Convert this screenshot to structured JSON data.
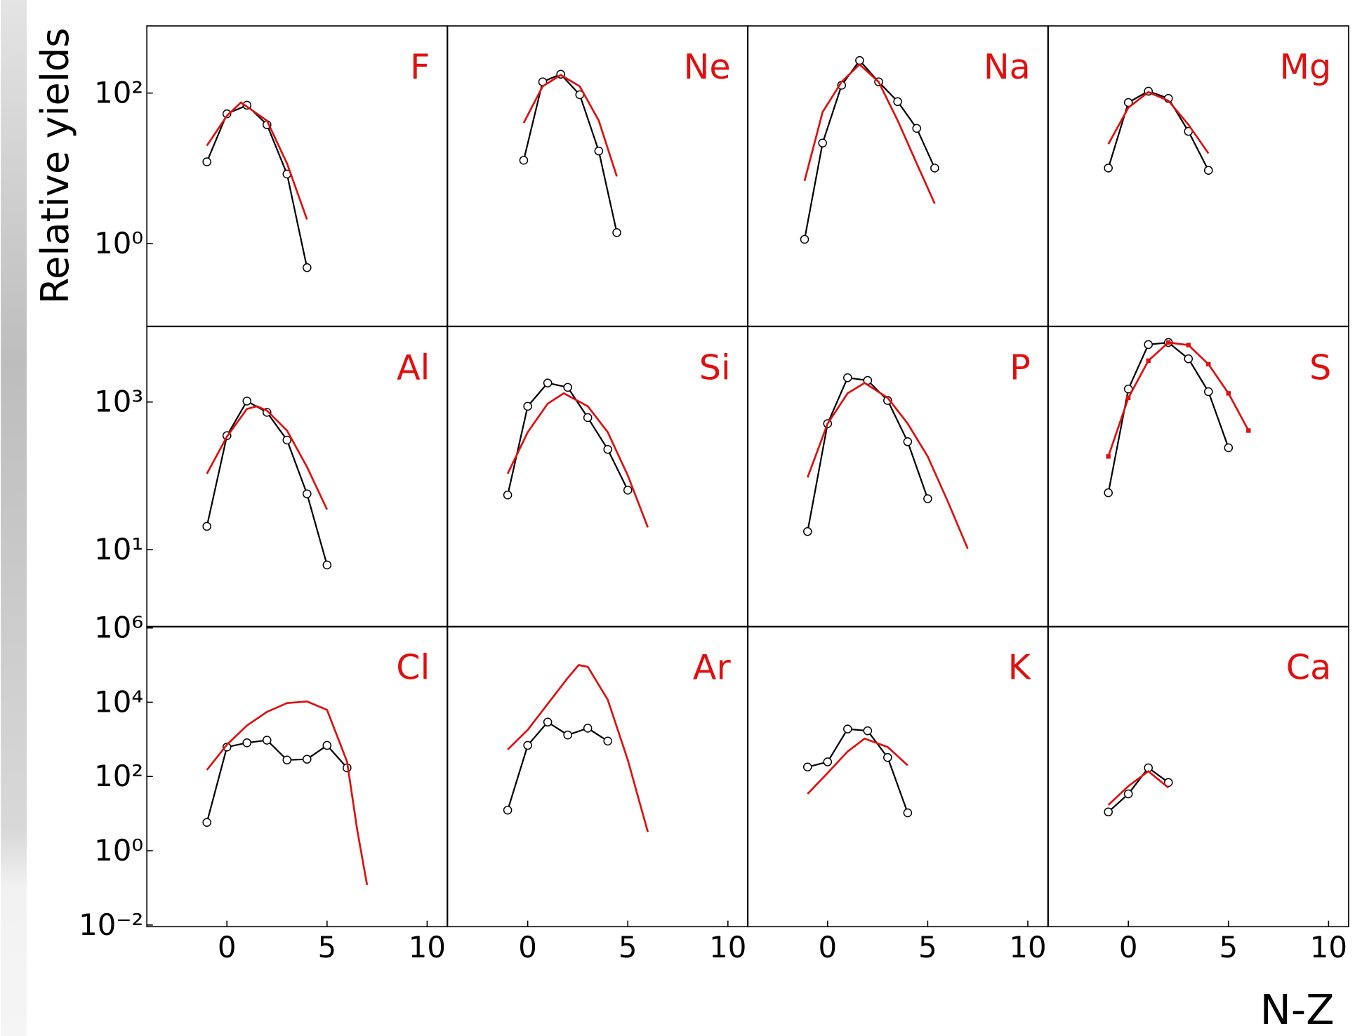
{
  "chart_data": [
    {
      "type": "line",
      "title": "F",
      "ylabel": "Relative yields",
      "log_y": true,
      "xlim": [
        -4,
        11
      ],
      "ylim": [
        0.08,
        780
      ],
      "yticks": [
        {
          "value": 1,
          "label": "10⁰"
        },
        {
          "value": 100,
          "label": "10²"
        }
      ],
      "series": [
        {
          "color": "#000000",
          "marker": "circle",
          "x": [
            -1,
            0,
            1,
            2,
            3,
            4
          ],
          "values": [
            12.2,
            53,
            69,
            38,
            8.4,
            0.48
          ]
        },
        {
          "color": "#dd1111",
          "marker": null,
          "x": [
            -1,
            0,
            0.7,
            2,
            3,
            4
          ],
          "values": [
            20,
            50,
            75,
            43,
            11.6,
            2.1
          ]
        }
      ]
    },
    {
      "type": "line",
      "title": "Ne",
      "log_y": true,
      "xlim": [
        -4,
        11
      ],
      "ylim": [
        0.08,
        780
      ],
      "series": [
        {
          "color": "#000000",
          "marker": "circle",
          "x": [
            -0.2,
            0.75,
            1.65,
            2.6,
            3.55,
            4.45
          ],
          "values": [
            12.8,
            141,
            178,
            95,
            17,
            1.4
          ]
        },
        {
          "color": "#dd1111",
          "marker": null,
          "x": [
            -0.2,
            0.75,
            1.65,
            2.6,
            3.55,
            4.45
          ],
          "values": [
            40,
            123,
            174,
            123,
            43,
            7.8
          ]
        }
      ]
    },
    {
      "type": "line",
      "title": "Na",
      "log_y": true,
      "xlim": [
        -4,
        11
      ],
      "ylim": [
        0.08,
        780
      ],
      "series": [
        {
          "color": "#000000",
          "marker": "circle",
          "x": [
            -1.15,
            -0.25,
            0.7,
            1.6,
            2.55,
            3.5,
            4.45,
            5.35
          ],
          "values": [
            1.14,
            21.7,
            127,
            271,
            141,
            77,
            34,
            10.1
          ]
        },
        {
          "color": "#dd1111",
          "marker": null,
          "x": [
            -1.15,
            -0.25,
            0.7,
            1.6,
            2.55,
            3.5,
            4.45,
            5.35
          ],
          "values": [
            6.8,
            56,
            141,
            240,
            141,
            43,
            11.6,
            3.4
          ]
        }
      ]
    },
    {
      "type": "line",
      "title": "Mg",
      "log_y": true,
      "xlim": [
        -4,
        11
      ],
      "ylim": [
        0.08,
        780
      ],
      "series": [
        {
          "color": "#000000",
          "marker": "circle",
          "x": [
            -1,
            0,
            1,
            2,
            3,
            4
          ],
          "values": [
            10.1,
            75,
            106,
            85,
            31,
            9.4
          ]
        },
        {
          "color": "#dd1111",
          "marker": null,
          "x": [
            -1,
            0,
            1,
            2,
            3,
            4
          ],
          "values": [
            21,
            64,
            103,
            79,
            38,
            15.8
          ]
        }
      ]
    },
    {
      "type": "line",
      "title": "Al",
      "log_y": true,
      "xlim": [
        -4,
        11
      ],
      "ylim": [
        0.9,
        10500
      ],
      "yticks": [
        {
          "value": 10,
          "label": "10¹"
        },
        {
          "value": 1000,
          "label": "10³"
        }
      ],
      "series": [
        {
          "color": "#000000",
          "marker": "circle",
          "x": [
            -1,
            0,
            1,
            2,
            3,
            4,
            5
          ],
          "values": [
            20.7,
            350,
            1030,
            725,
            305,
            57,
            6.2
          ]
        },
        {
          "color": "#dd1111",
          "marker": null,
          "x": [
            -1,
            0,
            1,
            1.5,
            2,
            3,
            4,
            5
          ],
          "values": [
            107,
            340,
            806,
            875,
            764,
            410,
            132,
            35
          ]
        }
      ]
    },
    {
      "type": "line",
      "title": "Si",
      "log_y": true,
      "xlim": [
        -4,
        11
      ],
      "ylim": [
        0.9,
        10500
      ],
      "series": [
        {
          "color": "#000000",
          "marker": "circle",
          "x": [
            -1,
            0,
            1,
            2,
            3,
            4,
            5
          ],
          "values": [
            55,
            875,
            1810,
            1580,
            615,
            228,
            64
          ]
        },
        {
          "color": "#dd1111",
          "marker": null,
          "x": [
            -1,
            0,
            1,
            1.8,
            3,
            4,
            5,
            6
          ],
          "values": [
            107,
            390,
            950,
            1310,
            875,
            390,
            101,
            20
          ]
        }
      ]
    },
    {
      "type": "line",
      "title": "P",
      "log_y": true,
      "xlim": [
        -4,
        11
      ],
      "ylim": [
        0.9,
        10500
      ],
      "series": [
        {
          "color": "#000000",
          "marker": "circle",
          "x": [
            -1,
            0,
            1,
            2,
            3,
            4,
            5
          ],
          "values": [
            17.6,
            510,
            2130,
            1960,
            1050,
            290,
            49
          ]
        },
        {
          "color": "#dd1111",
          "marker": null,
          "x": [
            -1,
            0,
            1,
            1.85,
            3,
            4,
            5,
            6,
            7
          ],
          "values": [
            95,
            510,
            1310,
            1810,
            1140,
            510,
            183,
            45,
            10.3
          ]
        }
      ]
    },
    {
      "type": "line",
      "title": "S",
      "log_y": true,
      "xlim": [
        -4,
        11
      ],
      "ylim": [
        0.9,
        10500
      ],
      "series": [
        {
          "color": "#000000",
          "marker": "circle",
          "x": [
            -1,
            0,
            1,
            2,
            3,
            4,
            5
          ],
          "values": [
            59,
            1500,
            6000,
            6400,
            3850,
            1380,
            240
          ]
        },
        {
          "color": "#dd1111",
          "marker": "square",
          "x": [
            -1,
            0,
            1,
            2,
            3,
            4,
            5,
            6
          ],
          "values": [
            183,
            1140,
            3630,
            6400,
            5900,
            3250,
            1310,
            410
          ]
        }
      ]
    },
    {
      "type": "line",
      "title": "Cl",
      "log_y": true,
      "xlim": [
        -4,
        11
      ],
      "ylim": [
        0.009,
        1100000
      ],
      "xticks": [
        0,
        5,
        10
      ],
      "yticks": [
        {
          "value": 0.01,
          "label": "10⁻²"
        },
        {
          "value": 1,
          "label": "10⁰"
        },
        {
          "value": 100,
          "label": "10²"
        },
        {
          "value": 10000,
          "label": "10⁴"
        },
        {
          "value": 1000000,
          "label": "10⁶"
        }
      ],
      "series": [
        {
          "color": "#000000",
          "marker": "circle",
          "x": [
            -1,
            0,
            1,
            2,
            3,
            4,
            5,
            6
          ],
          "values": [
            5.8,
            620,
            807,
            950,
            278,
            292,
            688,
            171
          ]
        },
        {
          "color": "#dd1111",
          "marker": null,
          "x": [
            -1,
            0,
            1,
            2,
            3,
            4,
            5,
            6,
            6.5,
            7
          ],
          "values": [
            150,
            720,
            2350,
            5500,
            9500,
            10500,
            6200,
            250,
            3.8,
            0.12
          ]
        }
      ]
    },
    {
      "type": "line",
      "title": "Ar",
      "log_y": true,
      "xlim": [
        -4,
        11
      ],
      "ylim": [
        0.009,
        1100000
      ],
      "xticks": [
        0,
        5,
        10
      ],
      "series": [
        {
          "color": "#000000",
          "marker": "circle",
          "x": [
            -1,
            0,
            1,
            2,
            3,
            4
          ],
          "values": [
            12.4,
            690,
            2920,
            1310,
            2000,
            900
          ]
        },
        {
          "color": "#dd1111",
          "marker": null,
          "x": [
            -1,
            0,
            1,
            2,
            2.55,
            3,
            4,
            5,
            6
          ],
          "values": [
            530,
            1800,
            9000,
            45000,
            100000,
            90000,
            11700,
            278,
            3.2
          ]
        }
      ]
    },
    {
      "type": "line",
      "title": "K",
      "log_y": true,
      "xlim": [
        -4,
        11
      ],
      "ylim": [
        0.009,
        1100000
      ],
      "xticks": [
        0,
        5,
        10
      ],
      "series": [
        {
          "color": "#000000",
          "marker": "circle",
          "x": [
            -1,
            0,
            1,
            2,
            3,
            4
          ],
          "values": [
            180,
            248,
            1900,
            1700,
            325,
            10.5
          ]
        },
        {
          "color": "#dd1111",
          "marker": null,
          "x": [
            -1,
            0,
            1,
            1.85,
            3,
            4
          ],
          "values": [
            34,
            124,
            470,
            1050,
            620,
            200
          ]
        }
      ]
    },
    {
      "type": "line",
      "title": "Ca",
      "xlabel": "N-Z",
      "log_y": true,
      "xlim": [
        -4,
        11
      ],
      "ylim": [
        0.009,
        1100000
      ],
      "xticks": [
        0,
        5,
        10
      ],
      "series": [
        {
          "color": "#000000",
          "marker": "circle",
          "x": [
            -1,
            0,
            1,
            2
          ],
          "values": [
            11.1,
            34,
            171,
            69
          ]
        },
        {
          "color": "#dd1111",
          "marker": null,
          "x": [
            -1,
            0,
            1,
            2
          ],
          "values": [
            17,
            55,
            138,
            50
          ]
        }
      ]
    }
  ]
}
